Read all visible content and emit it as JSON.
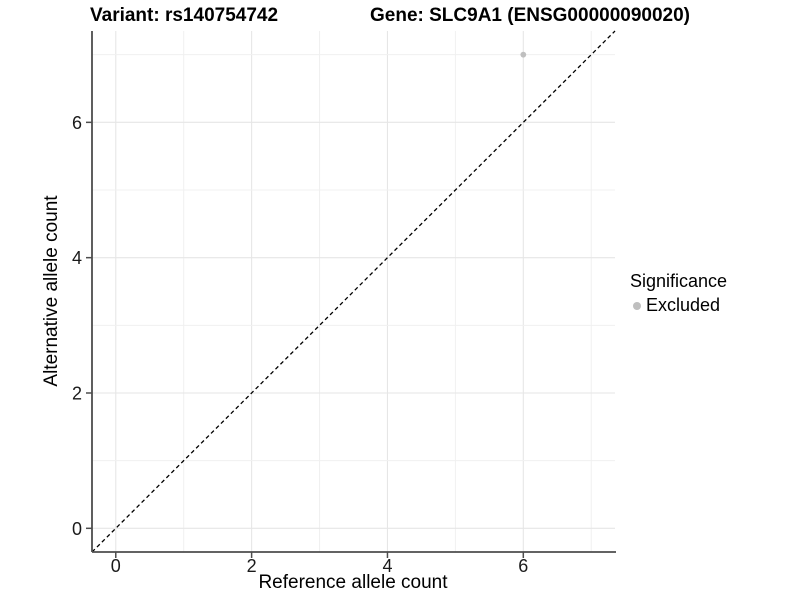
{
  "header": {
    "variant_title": "Variant: rs140754742",
    "gene_title": "Gene: SLC9A1 (ENSG00000090020)"
  },
  "legend": {
    "title": "Significance",
    "items": [
      {
        "label": "Excluded",
        "color": "#bfbfbf",
        "marker": "circle"
      }
    ]
  },
  "chart_data": {
    "type": "scatter",
    "title": "Variant: rs140754742 — Gene: SLC9A1 (ENSG00000090020)",
    "xlabel": "Reference allele count",
    "ylabel": "Alternative allele count",
    "xlim": [
      -0.35,
      7.35
    ],
    "ylim": [
      -0.35,
      7.35
    ],
    "xticks": [
      0,
      2,
      4,
      6
    ],
    "yticks": [
      0,
      2,
      4,
      6
    ],
    "grid": "on",
    "grid_every": 1,
    "legend_position": "right",
    "series": [
      {
        "name": "Excluded",
        "color": "#bfbfbf",
        "points": [
          {
            "x": 6,
            "y": 7
          }
        ]
      }
    ],
    "identity_line": {
      "style": "dashed",
      "color": "#000000",
      "from": [
        -0.35,
        -0.35
      ],
      "to": [
        7.35,
        7.35
      ]
    }
  },
  "colors": {
    "background": "#ffffff",
    "grid_major": "#e6e6e6",
    "grid_minor": "#f0f0f0",
    "axis_line": "#4d4d4d",
    "tick_text": "#1a1a1a",
    "point": "#bfbfbf"
  }
}
